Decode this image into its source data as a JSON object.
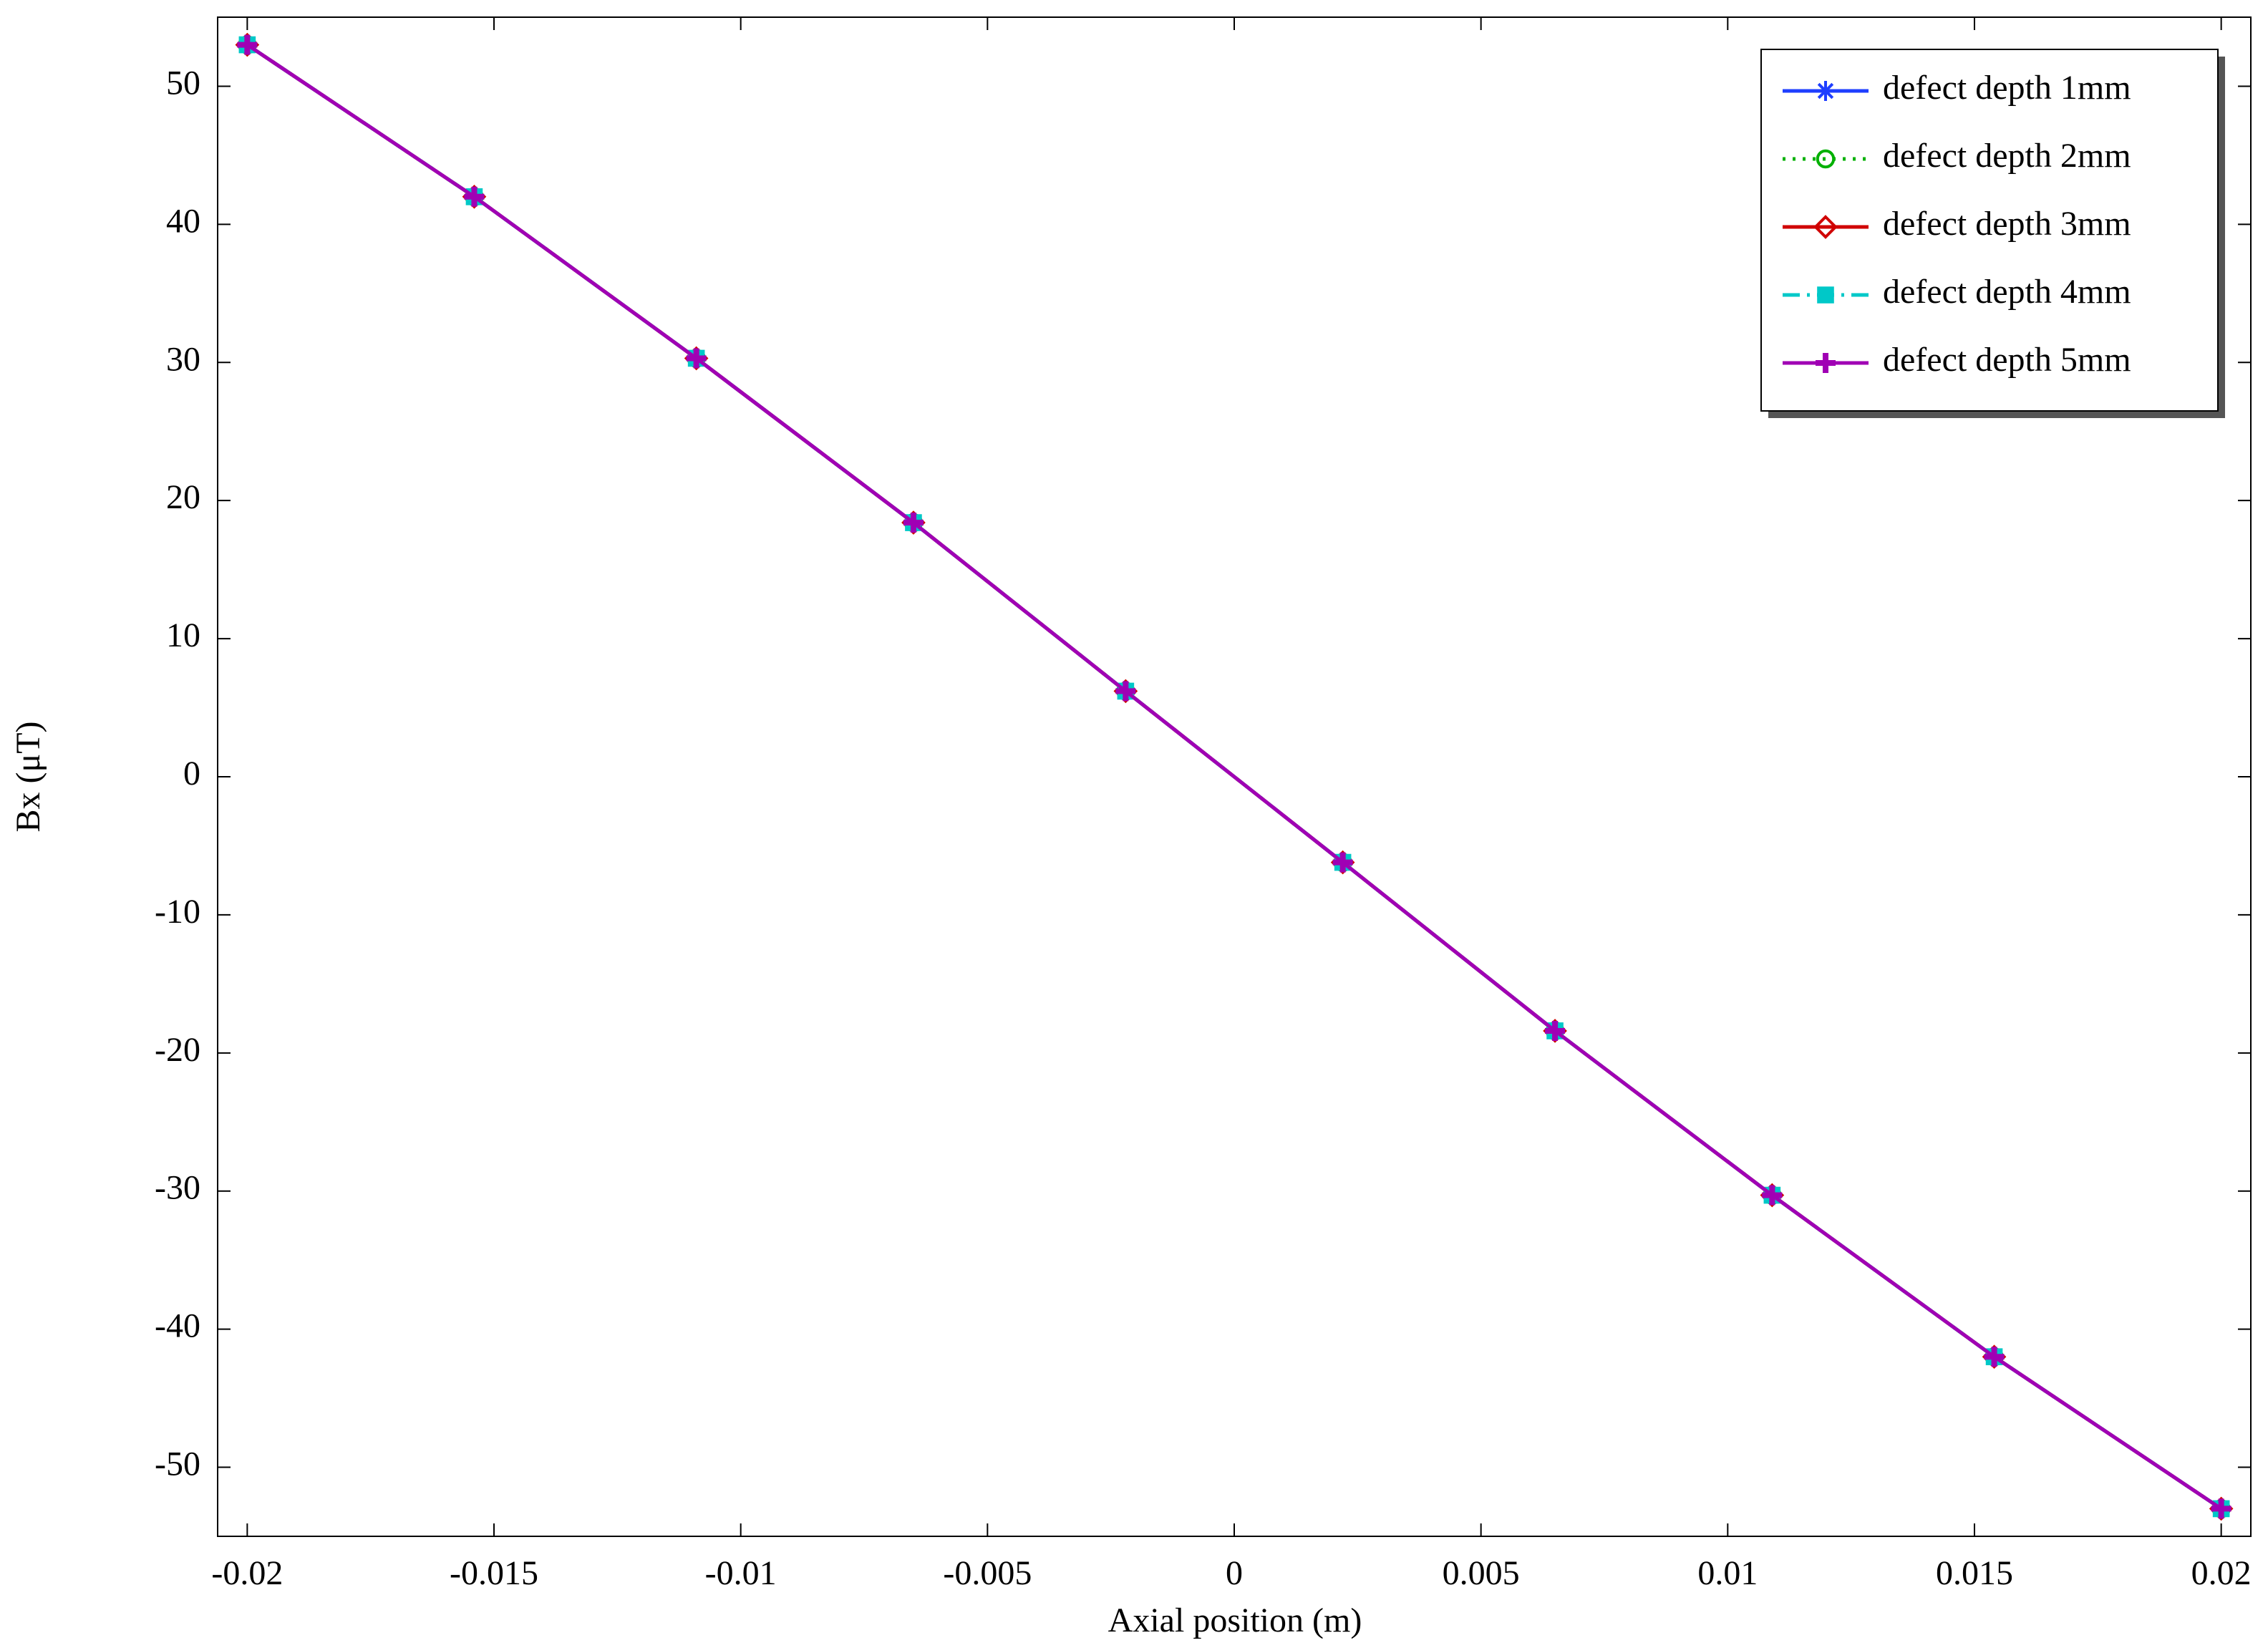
{
  "chart_data": {
    "type": "line",
    "x_label": "Axial position (m)",
    "y_label": "Bx (μT)",
    "x": [
      -0.02,
      -0.0154,
      -0.0109,
      -0.0065,
      -0.0022,
      0.0022,
      0.0065,
      0.0109,
      0.0154,
      0.02
    ],
    "series": [
      {
        "name": "defect depth 1mm",
        "color": "#1f3fff",
        "marker": "asterisk",
        "dash": "solid",
        "values": [
          53,
          42,
          30.3,
          18.4,
          6.2,
          -6.2,
          -18.4,
          -30.3,
          -42,
          -53
        ]
      },
      {
        "name": "defect depth 2mm",
        "color": "#00b000",
        "marker": "circle",
        "dash": "dotted",
        "values": [
          53,
          42,
          30.3,
          18.4,
          6.2,
          -6.2,
          -18.4,
          -30.3,
          -42,
          -53
        ]
      },
      {
        "name": "defect depth 3mm",
        "color": "#d00000",
        "marker": "diamond",
        "dash": "solid",
        "values": [
          53,
          42,
          30.3,
          18.4,
          6.2,
          -6.2,
          -18.4,
          -30.3,
          -42,
          -53
        ]
      },
      {
        "name": "defect depth 4mm",
        "color": "#00c8c8",
        "marker": "square",
        "dash": "dashdot",
        "values": [
          53,
          42,
          30.3,
          18.4,
          6.2,
          -6.2,
          -18.4,
          -30.3,
          -42,
          -53
        ]
      },
      {
        "name": "defect depth 5mm",
        "color": "#a000b4",
        "marker": "plus",
        "dash": "solid",
        "values": [
          53,
          42,
          30.3,
          18.4,
          6.2,
          -6.2,
          -18.4,
          -30.3,
          -42,
          -53
        ]
      }
    ],
    "xlim": [
      -0.0206,
      0.0206
    ],
    "xticks": [
      -0.02,
      -0.015,
      -0.01,
      -0.005,
      0,
      0.005,
      0.01,
      0.015,
      0.02
    ],
    "ylim": [
      -55,
      55
    ],
    "yticks": [
      -50,
      -40,
      -30,
      -20,
      -10,
      0,
      10,
      20,
      30,
      40,
      50
    ],
    "grid": false,
    "legend": "upper right"
  }
}
